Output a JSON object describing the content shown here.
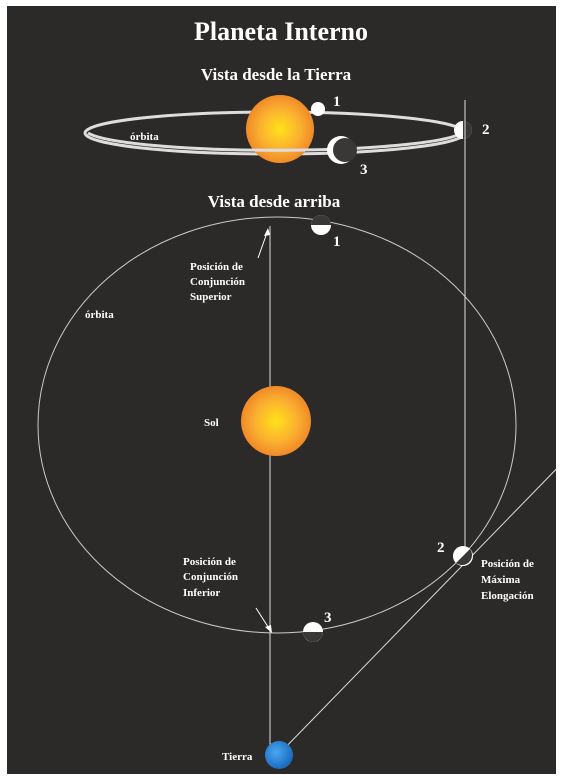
{
  "title": "Planeta Interno",
  "side_view": {
    "heading": "Vista desde la Tierra",
    "orbit_label": "órbita",
    "positions": [
      "1",
      "2",
      "3"
    ]
  },
  "top_view": {
    "heading": "Vista desde arriba",
    "orbit_label": "órbita",
    "sun_label": "Sol",
    "earth_label": "Tierra",
    "positions": [
      "1",
      "2",
      "3"
    ],
    "superior_conjunction": [
      "Posición de",
      "Conjunción",
      "Superior"
    ],
    "inferior_conjunction": [
      "Posición de",
      "Conjunción",
      "Inferior"
    ],
    "max_elongation": [
      "Posición de",
      "Máxima",
      "Elongación"
    ]
  }
}
